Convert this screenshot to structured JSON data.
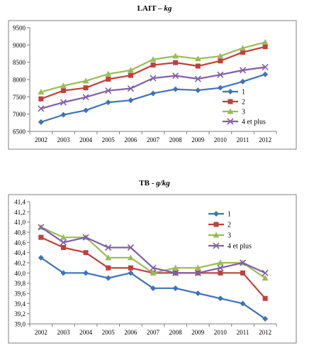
{
  "chart_data": [
    {
      "type": "line",
      "title": "LAIT",
      "unit": "kg",
      "title_sep": " – ",
      "categories": [
        "2002",
        "2003",
        "2004",
        "2005",
        "2006",
        "2007",
        "2008",
        "2009",
        "2010",
        "2011",
        "2012"
      ],
      "ylim": [
        6500,
        9500
      ],
      "yticks": [
        "6500",
        "7000",
        "7500",
        "8000",
        "8500",
        "9000",
        "9500"
      ],
      "ytick_values": [
        6500,
        7000,
        7500,
        8000,
        8500,
        9000,
        9500
      ],
      "grid": false,
      "legend": "right",
      "series": [
        {
          "name": "1",
          "color": "#3f73b9",
          "marker": "diamond",
          "values": [
            6770,
            6980,
            7110,
            7340,
            7400,
            7600,
            7720,
            7690,
            7760,
            7940,
            8150
          ]
        },
        {
          "name": "2",
          "color": "#c0403c",
          "marker": "square",
          "values": [
            7440,
            7680,
            7760,
            8010,
            8120,
            8420,
            8490,
            8390,
            8540,
            8790,
            8950
          ]
        },
        {
          "name": "3",
          "color": "#9bbb59",
          "marker": "triangle",
          "values": [
            7640,
            7820,
            7960,
            8160,
            8270,
            8580,
            8680,
            8600,
            8680,
            8910,
            9080
          ]
        },
        {
          "name": "4 et plus",
          "color": "#7f5fa8",
          "marker": "x",
          "values": [
            7160,
            7340,
            7490,
            7680,
            7740,
            8040,
            8110,
            8020,
            8140,
            8270,
            8360
          ]
        }
      ]
    },
    {
      "type": "line",
      "title": "TB",
      "unit": "g/kg",
      "title_sep": " - ",
      "categories": [
        "2002",
        "2003",
        "2004",
        "2005",
        "2006",
        "2007",
        "2008",
        "2009",
        "2010",
        "2011",
        "2012"
      ],
      "ylim": [
        39.0,
        41.4
      ],
      "yticks": [
        "39,0",
        "39,2",
        "39,4",
        "39,6",
        "39,8",
        "40,0",
        "40,2",
        "40,4",
        "40,6",
        "40,8",
        "41,0",
        "41,2",
        "41,4"
      ],
      "ytick_values": [
        39.0,
        39.2,
        39.4,
        39.6,
        39.8,
        40.0,
        40.2,
        40.4,
        40.6,
        40.8,
        41.0,
        41.2,
        41.4
      ],
      "grid": false,
      "legend": "top-right",
      "series": [
        {
          "name": "1",
          "color": "#3f73b9",
          "marker": "diamond",
          "values": [
            40.3,
            40.0,
            40.0,
            39.9,
            40.0,
            39.7,
            39.7,
            39.6,
            39.5,
            39.4,
            39.1
          ]
        },
        {
          "name": "2",
          "color": "#c0403c",
          "marker": "square",
          "values": [
            40.7,
            40.5,
            40.4,
            40.1,
            40.1,
            40.0,
            40.0,
            40.0,
            40.0,
            40.0,
            39.5
          ]
        },
        {
          "name": "3",
          "color": "#9bbb59",
          "marker": "triangle",
          "values": [
            40.9,
            40.7,
            40.7,
            40.3,
            40.3,
            40.0,
            40.1,
            40.1,
            40.2,
            40.2,
            39.9
          ]
        },
        {
          "name": "4 et plus",
          "color": "#7f5fa8",
          "marker": "x",
          "values": [
            40.9,
            40.6,
            40.7,
            40.5,
            40.5,
            40.1,
            40.0,
            40.0,
            40.1,
            40.2,
            40.0
          ]
        }
      ]
    }
  ]
}
